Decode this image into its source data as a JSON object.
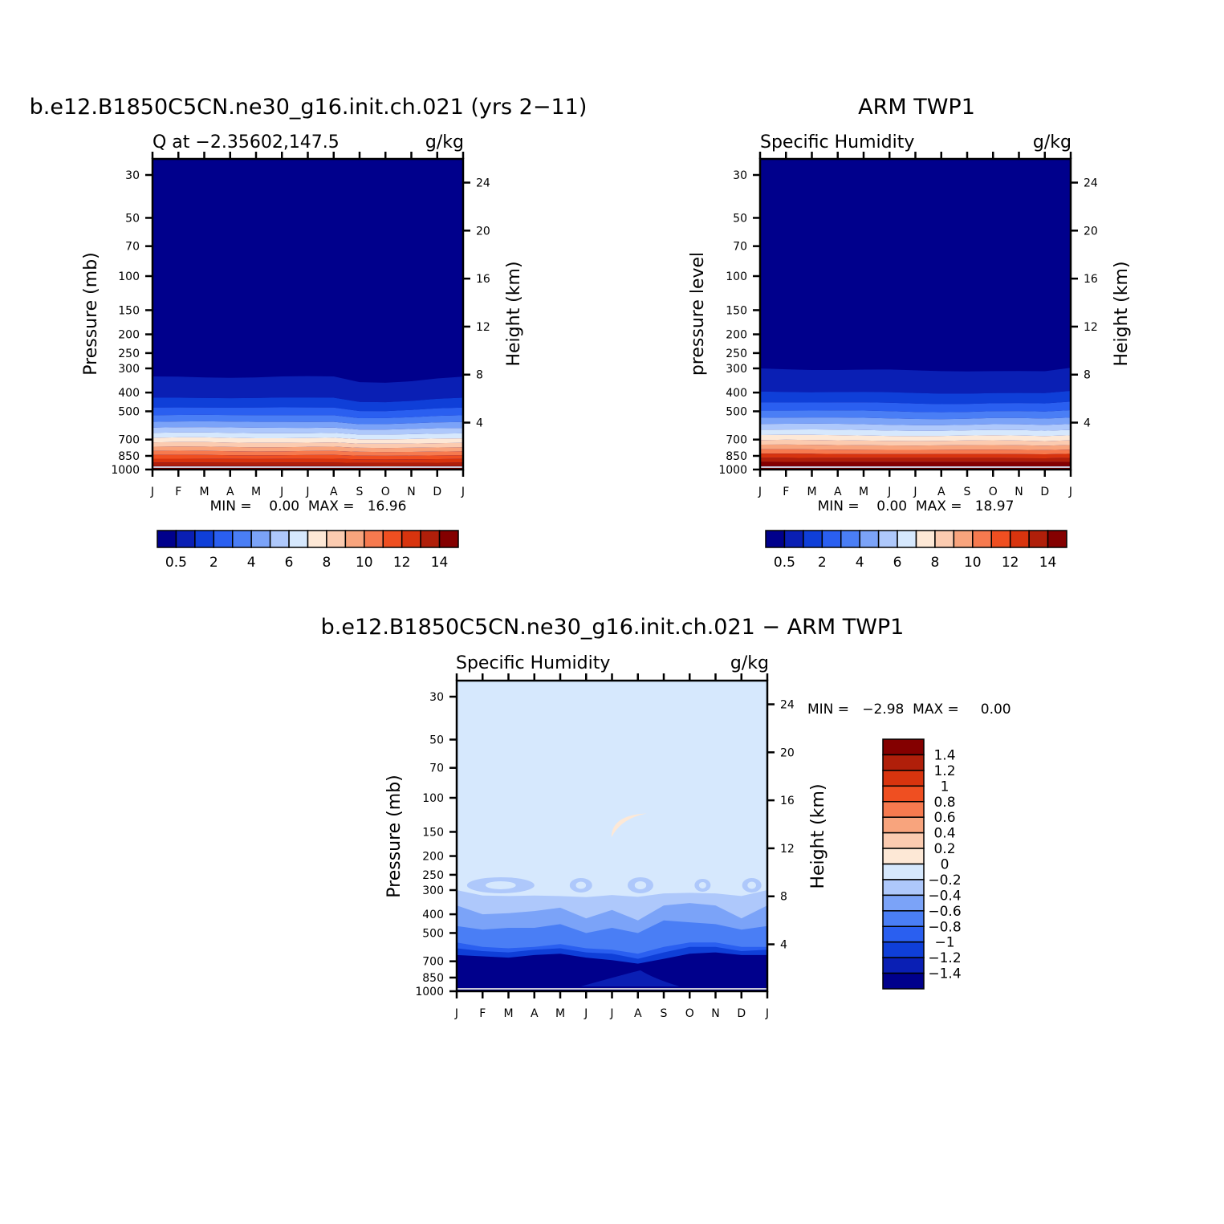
{
  "palette": {
    "abs": [
      "#00008c",
      "#0a1fb4",
      "#0f3fd8",
      "#2a5ff0",
      "#4a7ef5",
      "#7ba3f8",
      "#aec8fb",
      "#d6e8fd",
      "#fde8d6",
      "#fbcbb0",
      "#f8a47d",
      "#f67a4f",
      "#ef4f21",
      "#d8340e",
      "#b01f0a",
      "#840000"
    ],
    "diff": [
      "#00008c",
      "#0a1fb4",
      "#0f3fd8",
      "#2a5ff0",
      "#4a7ef5",
      "#7ba3f8",
      "#aec8fb",
      "#d6e8fd",
      "#fde8d6",
      "#fbcbb0",
      "#f8a47d",
      "#f67a4f",
      "#ef4f21",
      "#d8340e",
      "#b01f0a",
      "#840000"
    ]
  },
  "chart_data": [
    {
      "type": "heatmap",
      "title": "b.e12.B1850C5CN.ne30_g16.init.ch.021 (yrs 2−11)",
      "subtitle_left": "Q at −2.35602,147.5",
      "subtitle_right": "g/kg",
      "ylabel": "Pressure (mb)",
      "ylabel_right": "Height (km)",
      "x_ticks": [
        "J",
        "F",
        "M",
        "A",
        "M",
        "J",
        "J",
        "A",
        "S",
        "O",
        "N",
        "D",
        "J"
      ],
      "y_ticks": [
        "30",
        "50",
        "70",
        "100",
        "150",
        "200",
        "250",
        "300",
        "400",
        "500",
        "700",
        "850",
        "1000"
      ],
      "y_ticks_right": [
        "24",
        "20",
        "16",
        "12",
        "8",
        "4"
      ],
      "stats": "MIN =    0.00  MAX =   16.96",
      "colorbar_labels": [
        "0.5",
        "2",
        "4",
        "6",
        "8",
        "10",
        "12",
        "14"
      ],
      "ylim": [
        30,
        1000
      ],
      "moisture_top_pressure": [
        330,
        328,
        330,
        334,
        336,
        334,
        332,
        330,
        350,
        352,
        348,
        340,
        335
      ]
    },
    {
      "type": "heatmap",
      "title": "ARM TWP1",
      "subtitle_left": "Specific Humidity",
      "subtitle_right": "g/kg",
      "ylabel": "pressure level",
      "ylabel_right": "Height (km)",
      "x_ticks": [
        "J",
        "F",
        "M",
        "A",
        "M",
        "J",
        "J",
        "A",
        "S",
        "O",
        "N",
        "D",
        "J"
      ],
      "y_ticks": [
        "30",
        "50",
        "70",
        "100",
        "150",
        "200",
        "250",
        "300",
        "400",
        "500",
        "700",
        "850",
        "1000"
      ],
      "y_ticks_right": [
        "24",
        "20",
        "16",
        "12",
        "8",
        "4"
      ],
      "stats": "MIN =    0.00  MAX =   18.97",
      "colorbar_labels": [
        "0.5",
        "2",
        "4",
        "6",
        "8",
        "10",
        "12",
        "14"
      ],
      "ylim": [
        30,
        1000
      ],
      "moisture_top_pressure": [
        300,
        300,
        302,
        304,
        306,
        308,
        310,
        310,
        308,
        306,
        308,
        312,
        302
      ]
    },
    {
      "type": "heatmap",
      "title": "b.e12.B1850C5CN.ne30_g16.init.ch.021 − ARM TWP1",
      "subtitle_left": "Specific Humidity",
      "subtitle_right": "g/kg",
      "ylabel": "Pressure (mb)",
      "ylabel_right": "Height (km)",
      "x_ticks": [
        "J",
        "F",
        "M",
        "A",
        "M",
        "J",
        "J",
        "A",
        "S",
        "O",
        "N",
        "D",
        "J"
      ],
      "y_ticks": [
        "30",
        "50",
        "70",
        "100",
        "150",
        "200",
        "250",
        "300",
        "400",
        "500",
        "700",
        "850",
        "1000"
      ],
      "y_ticks_right": [
        "24",
        "20",
        "16",
        "12",
        "8",
        "4"
      ],
      "stats": "MIN =   −2.98  MAX =     0.00",
      "colorbar_labels": [
        "1.4",
        "1.2",
        "1",
        "0.8",
        "0.6",
        "0.4",
        "0.2",
        "0",
        "−0.2",
        "−0.4",
        "−0.6",
        "−0.8",
        "−1",
        "−1.2",
        "−1.4"
      ],
      "ylim": [
        30,
        1000
      ]
    }
  ]
}
